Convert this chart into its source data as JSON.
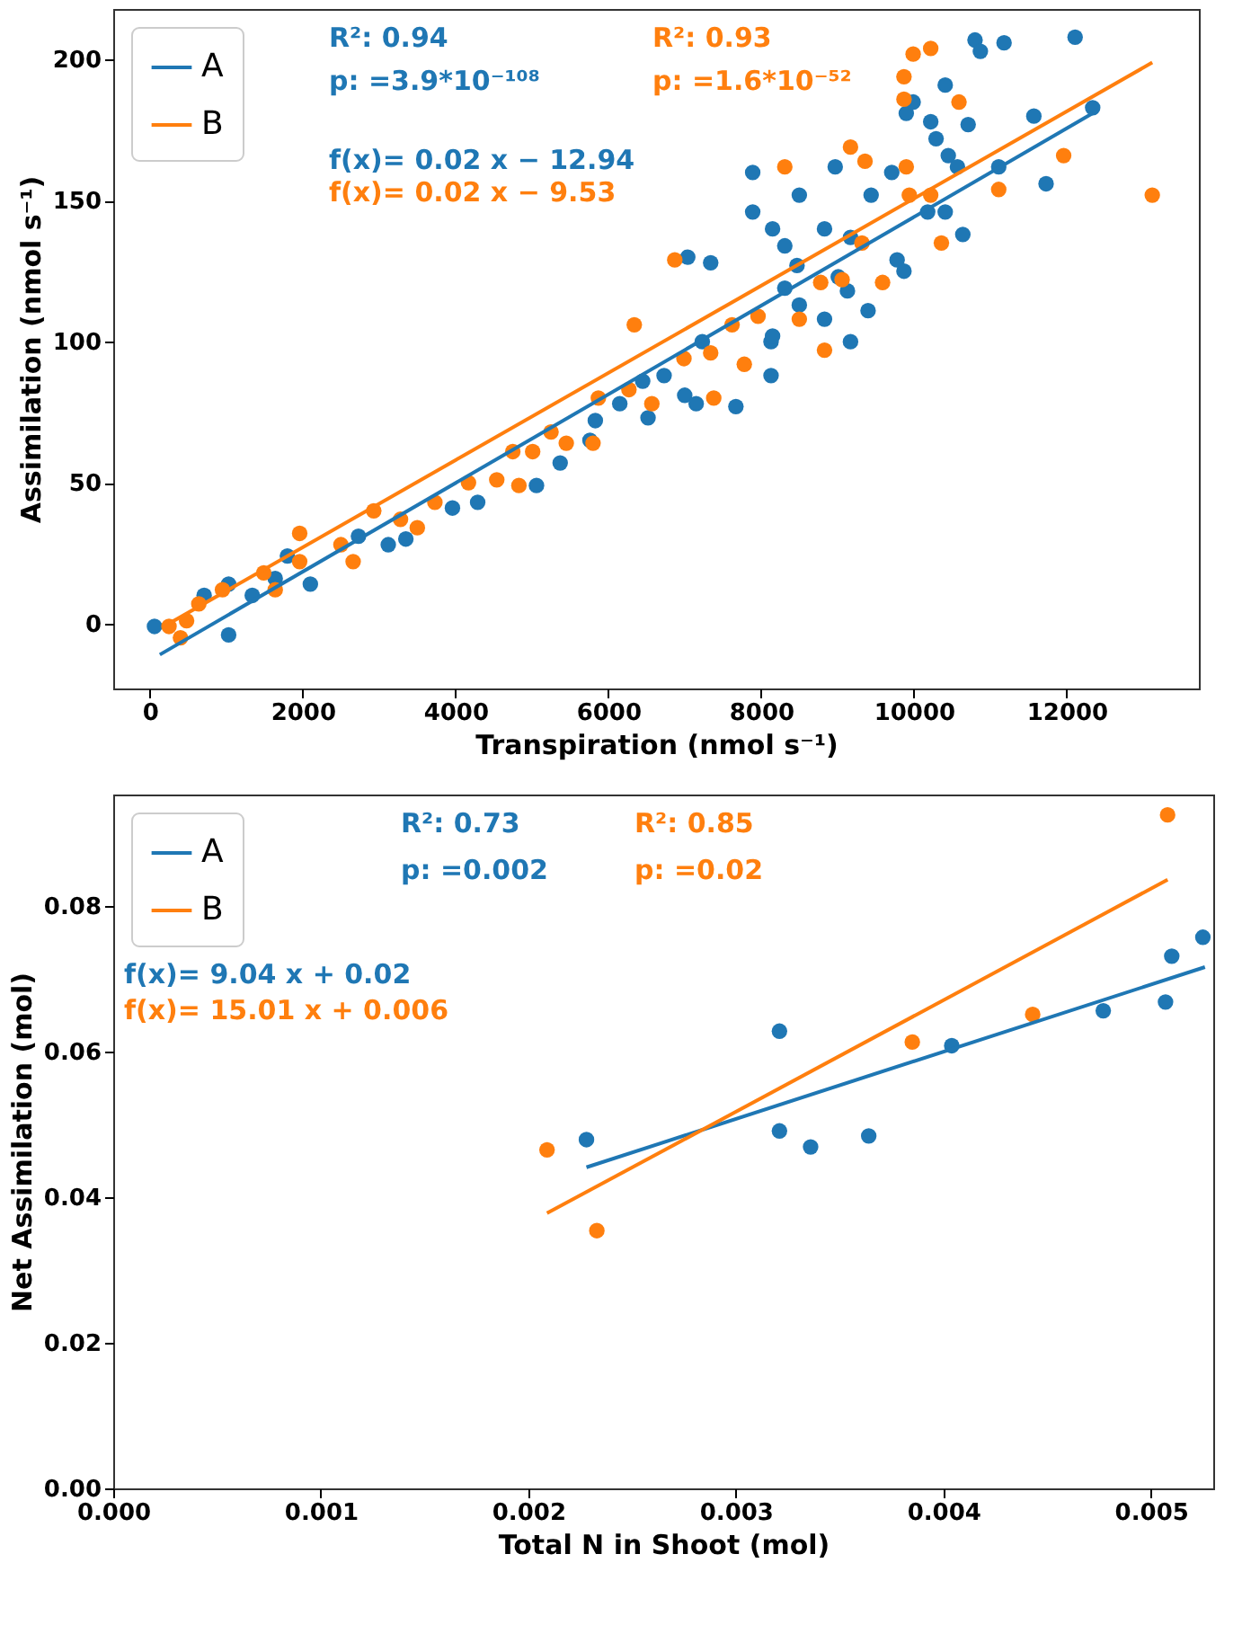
{
  "chart_data": [
    {
      "type": "scatter",
      "xlabel": "Transpiration (nmol s⁻¹)",
      "ylabel": "Assimilation (nmol s⁻¹)",
      "xlim": [
        -480,
        13730
      ],
      "ylim": [
        -23,
        218
      ],
      "xticks": [
        0,
        2000,
        4000,
        6000,
        8000,
        10000,
        12000
      ],
      "yticks": [
        0,
        50,
        100,
        150,
        200
      ],
      "grid": false,
      "legend": "top left",
      "annotations": [
        "R²: 0.94",
        "p: =3.9*10⁻¹⁰⁸",
        "R²: 0.93",
        "p: =1.6*10⁻⁵²",
        "f(x)= 0.02 x − 12.94",
        "f(x)= 0.02 x − 9.53"
      ],
      "series": [
        {
          "type": "scatter",
          "color": "#1f77b4",
          "x": [
            60,
            1030,
            710,
            1030,
            1340,
            1800,
            2100,
            1640,
            2730,
            3120,
            3350,
            3960,
            4290,
            5060,
            5370,
            5760,
            6150,
            6450,
            5830,
            6520,
            7000,
            7150,
            7230,
            7670,
            8130,
            8130,
            8310,
            8470,
            7890,
            7890,
            8150,
            8310,
            8500,
            7340,
            7040,
            8830,
            8970,
            9440,
            9170,
            9130,
            9170,
            8830,
            8500,
            8150,
            9010,
            9400,
            9710,
            9780,
            9870,
            9900,
            9990,
            10220,
            10290,
            10410,
            10450,
            10570,
            10180,
            10410,
            10640,
            10710,
            10800,
            10870,
            11180,
            11110,
            11570,
            11730,
            12110,
            12340,
            6730
          ],
          "values": [
            -1,
            -4,
            10,
            14,
            10,
            24,
            14,
            16,
            31,
            28,
            30,
            41,
            43,
            49,
            57,
            65,
            78,
            86,
            72,
            73,
            81,
            78,
            100,
            77,
            88,
            100,
            119,
            127,
            160,
            146,
            140,
            134,
            152,
            128,
            130,
            140,
            162,
            152,
            137,
            118,
            100,
            108,
            113,
            102,
            123,
            111,
            160,
            129,
            125,
            181,
            185,
            178,
            172,
            191,
            166,
            162,
            146,
            146,
            138,
            177,
            207,
            203,
            206,
            162,
            180,
            156,
            208,
            183,
            88
          ]
        },
        {
          "type": "scatter",
          "color": "#ff7f0e",
          "x": [
            250,
            480,
            400,
            640,
            950,
            1490,
            1640,
            1960,
            1960,
            2660,
            2500,
            2930,
            3280,
            3500,
            3730,
            4170,
            4540,
            4830,
            4750,
            5010,
            5250,
            5450,
            5800,
            5870,
            6270,
            6340,
            6570,
            6870,
            6990,
            7380,
            7340,
            7620,
            7780,
            7960,
            8310,
            8500,
            8780,
            8830,
            9060,
            9170,
            9360,
            9320,
            9590,
            9870,
            9990,
            10220,
            9870,
            9900,
            9940,
            10220,
            10360,
            10590,
            11110,
            11960,
            13120
          ],
          "values": [
            -1,
            1,
            -5,
            7,
            12,
            18,
            12,
            32,
            22,
            22,
            28,
            40,
            37,
            34,
            43,
            50,
            51,
            49,
            61,
            61,
            68,
            64,
            64,
            80,
            83,
            106,
            78,
            129,
            94,
            80,
            96,
            106,
            92,
            109,
            162,
            108,
            121,
            97,
            122,
            169,
            164,
            135,
            121,
            194,
            202,
            204,
            186,
            162,
            152,
            152,
            135,
            185,
            154,
            166,
            152
          ]
        },
        {
          "type": "line",
          "name": "A",
          "color": "#1f77b4",
          "x": [
            130,
            12340
          ],
          "values": [
            -11,
            181
          ]
        },
        {
          "type": "line",
          "name": "B",
          "color": "#ff7f0e",
          "x": [
            250,
            13120
          ],
          "values": [
            0,
            199
          ]
        }
      ]
    },
    {
      "type": "scatter",
      "xlabel": "Total N in Shoot (mol)",
      "ylabel": "Net Assimilation (mol)",
      "xlim": [
        0,
        0.0053
      ],
      "ylim": [
        0,
        0.0953
      ],
      "xticks": [
        {
          "value": 0,
          "label": "0.000"
        },
        0.001,
        0.002,
        0.003,
        0.004,
        0.005
      ],
      "yticks": [
        {
          "value": 0,
          "label": "0.00"
        },
        0.02,
        0.04,
        0.06,
        0.08
      ],
      "grid": false,
      "legend": "top left",
      "annotations": [
        "R²: 0.73",
        "p: =0.002",
        "R²: 0.85",
        "p: =0.02",
        "f(x)= 9.04 x + 0.02",
        "f(x)= 15.01 x + 0.006"
      ],
      "series": [
        {
          "type": "scatter",
          "color": "#1f77b4",
          "x": [
            0.00228,
            0.00321,
            0.00336,
            0.00364,
            0.00321,
            0.00404,
            0.00477,
            0.00507,
            0.0051,
            0.00525
          ],
          "values": [
            0.0479,
            0.0491,
            0.0469,
            0.0484,
            0.0628,
            0.0608,
            0.0656,
            0.0668,
            0.0731,
            0.0757
          ]
        },
        {
          "type": "scatter",
          "color": "#ff7f0e",
          "x": [
            0.00209,
            0.00233,
            0.00385,
            0.00443,
            0.00508
          ],
          "values": [
            0.0465,
            0.0354,
            0.0613,
            0.0651,
            0.0925
          ]
        },
        {
          "type": "line",
          "name": "A",
          "color": "#1f77b4",
          "x": [
            0.00228,
            0.00526
          ],
          "values": [
            0.0441,
            0.0716
          ]
        },
        {
          "type": "line",
          "name": "B",
          "color": "#ff7f0e",
          "x": [
            0.00209,
            0.00508
          ],
          "values": [
            0.0378,
            0.0836
          ]
        }
      ]
    }
  ]
}
